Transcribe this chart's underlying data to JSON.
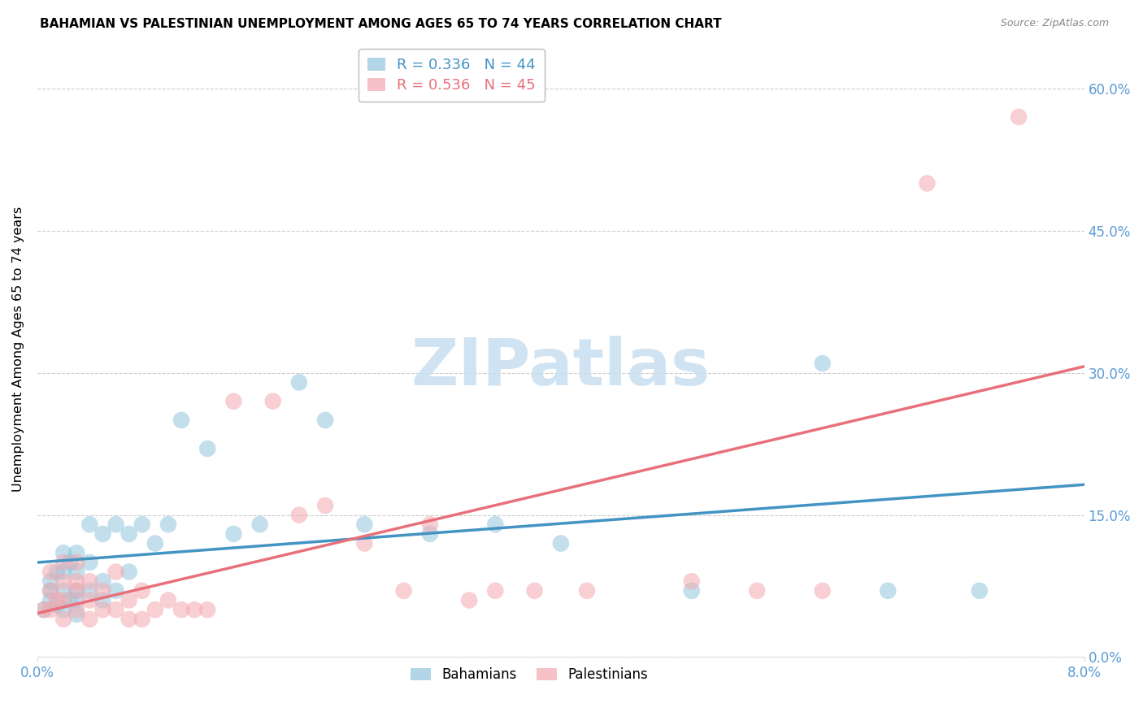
{
  "title": "BAHAMIAN VS PALESTINIAN UNEMPLOYMENT AMONG AGES 65 TO 74 YEARS CORRELATION CHART",
  "source": "Source: ZipAtlas.com",
  "ylabel": "Unemployment Among Ages 65 to 74 years",
  "xlim": [
    0.0,
    0.08
  ],
  "ylim": [
    0.0,
    0.65
  ],
  "ytick_positions": [
    0.0,
    0.15,
    0.3,
    0.45,
    0.6
  ],
  "ytick_labels": [
    "0.0%",
    "15.0%",
    "30.0%",
    "45.0%",
    "60.0%"
  ],
  "xtick_positions": [
    0.0,
    0.08
  ],
  "xtick_labels": [
    "0.0%",
    "8.0%"
  ],
  "bahamian_color": "#92c5de",
  "palestinian_color": "#f4a9b0",
  "bahamian_line_color": "#4393c3",
  "palestinian_line_color": "#e8707a",
  "R_bahamian": 0.336,
  "N_bahamian": 44,
  "R_palestinian": 0.536,
  "N_palestinian": 45,
  "bahamian_x": [
    0.0005,
    0.001,
    0.001,
    0.001,
    0.0015,
    0.0015,
    0.002,
    0.002,
    0.002,
    0.002,
    0.0025,
    0.0025,
    0.003,
    0.003,
    0.003,
    0.003,
    0.003,
    0.004,
    0.004,
    0.004,
    0.005,
    0.005,
    0.005,
    0.006,
    0.006,
    0.007,
    0.007,
    0.008,
    0.009,
    0.01,
    0.011,
    0.013,
    0.015,
    0.017,
    0.02,
    0.022,
    0.025,
    0.03,
    0.035,
    0.04,
    0.05,
    0.06,
    0.065,
    0.072
  ],
  "bahamian_y": [
    0.05,
    0.06,
    0.07,
    0.08,
    0.055,
    0.09,
    0.05,
    0.07,
    0.09,
    0.11,
    0.06,
    0.1,
    0.045,
    0.06,
    0.07,
    0.09,
    0.11,
    0.07,
    0.1,
    0.14,
    0.06,
    0.08,
    0.13,
    0.07,
    0.14,
    0.09,
    0.13,
    0.14,
    0.12,
    0.14,
    0.25,
    0.22,
    0.13,
    0.14,
    0.29,
    0.25,
    0.14,
    0.13,
    0.14,
    0.12,
    0.07,
    0.31,
    0.07,
    0.07
  ],
  "palestinian_x": [
    0.0005,
    0.001,
    0.001,
    0.001,
    0.0015,
    0.002,
    0.002,
    0.002,
    0.002,
    0.003,
    0.003,
    0.003,
    0.003,
    0.004,
    0.004,
    0.004,
    0.005,
    0.005,
    0.006,
    0.006,
    0.007,
    0.007,
    0.008,
    0.008,
    0.009,
    0.01,
    0.011,
    0.012,
    0.013,
    0.015,
    0.018,
    0.02,
    0.022,
    0.025,
    0.028,
    0.03,
    0.033,
    0.035,
    0.038,
    0.042,
    0.05,
    0.055,
    0.06,
    0.068,
    0.075
  ],
  "palestinian_y": [
    0.05,
    0.05,
    0.07,
    0.09,
    0.06,
    0.04,
    0.06,
    0.08,
    0.1,
    0.05,
    0.07,
    0.08,
    0.1,
    0.04,
    0.06,
    0.08,
    0.05,
    0.07,
    0.05,
    0.09,
    0.04,
    0.06,
    0.04,
    0.07,
    0.05,
    0.06,
    0.05,
    0.05,
    0.05,
    0.27,
    0.27,
    0.15,
    0.16,
    0.12,
    0.07,
    0.14,
    0.06,
    0.07,
    0.07,
    0.07,
    0.08,
    0.07,
    0.07,
    0.5,
    0.57
  ],
  "watermark_text": "ZIPatlas",
  "watermark_color": "#c8dff0",
  "legend_bahamian_label": "Bahamians",
  "legend_palestinian_label": "Palestinians",
  "background_color": "#ffffff",
  "axis_tick_color": "#5b9bd5",
  "grid_color": "#cccccc",
  "regression_line_intercept_bah": 0.04,
  "regression_line_intercept_pal": 0.01
}
